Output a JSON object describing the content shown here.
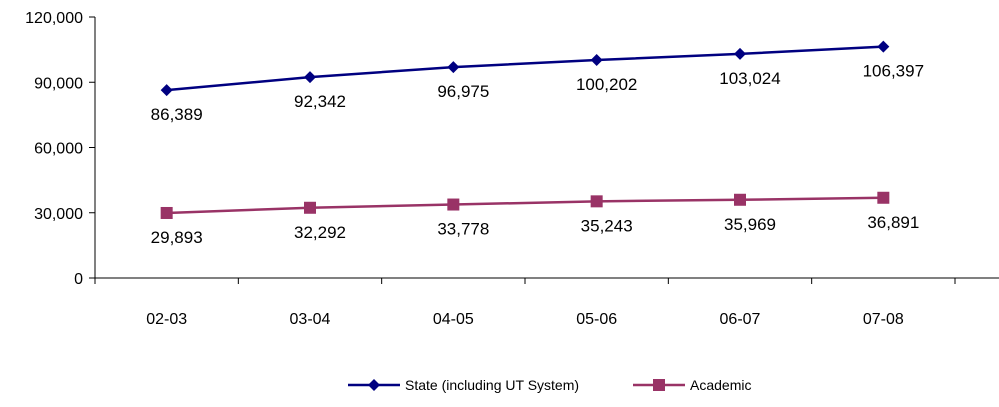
{
  "chart_data": {
    "type": "line",
    "categories": [
      "02-03",
      "03-04",
      "04-05",
      "05-06",
      "06-07",
      "07-08"
    ],
    "series": [
      {
        "name": "State (including UT System)",
        "values": [
          86389,
          92342,
          96975,
          100202,
          103024,
          106397
        ],
        "labels": [
          "86,389",
          "92,342",
          "96,975",
          "100,202",
          "103,024",
          "106,397"
        ],
        "color": "#000080",
        "marker": "diamond"
      },
      {
        "name": "Academic",
        "values": [
          29893,
          32292,
          33778,
          35243,
          35969,
          36891
        ],
        "labels": [
          "29,893",
          "32,292",
          "33,778",
          "35,243",
          "35,969",
          "36,891"
        ],
        "color": "#993366",
        "marker": "square"
      }
    ],
    "yticks": [
      0,
      30000,
      60000,
      90000,
      120000
    ],
    "ytick_labels": [
      "0",
      "30,000",
      "60,000",
      "90,000",
      "120,000"
    ],
    "ylim": [
      0,
      120000
    ],
    "grid": false,
    "legend": "bottom-center"
  }
}
